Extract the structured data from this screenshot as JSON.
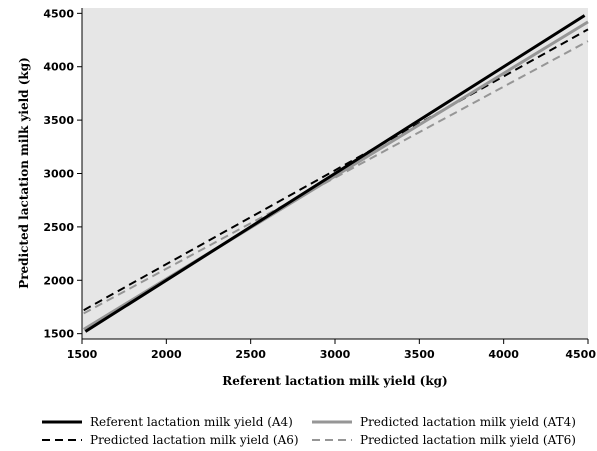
{
  "chart_data": {
    "type": "line",
    "xlabel": "Referent lactation milk yield (kg)",
    "ylabel": "Predicted lactation milk yield (kg)",
    "xlim": [
      1500,
      4500
    ],
    "ylim": [
      1450,
      4550
    ],
    "xticks": [
      1500,
      2000,
      2500,
      3000,
      3500,
      4000,
      4500
    ],
    "yticks": [
      1500,
      2000,
      2500,
      3000,
      3500,
      4000,
      4500
    ],
    "background": "#e6e6e6",
    "grid": false,
    "legend_position": "bottom",
    "series": [
      {
        "name": "Referent lactation milk yield (A4)",
        "color": "#000000",
        "dash": "solid",
        "width": "thick",
        "x": [
          1520,
          4480
        ],
        "y": [
          1520,
          4480
        ]
      },
      {
        "name": "Predicted lactation milk yield (AT4)",
        "color": "#969696",
        "dash": "solid",
        "width": "thick",
        "x": [
          1510,
          4500
        ],
        "y": [
          1540,
          4420
        ]
      },
      {
        "name": "Predicted lactation milk yield (A6)",
        "color": "#000000",
        "dash": "dashed",
        "width": "normal",
        "x": [
          1510,
          4500
        ],
        "y": [
          1720,
          4350
        ]
      },
      {
        "name": "Predicted lactation milk yield (AT6)",
        "color": "#969696",
        "dash": "dashed",
        "width": "normal",
        "x": [
          1510,
          4500
        ],
        "y": [
          1690,
          4240
        ]
      }
    ],
    "legend_order": [
      0,
      1,
      2,
      3
    ]
  }
}
